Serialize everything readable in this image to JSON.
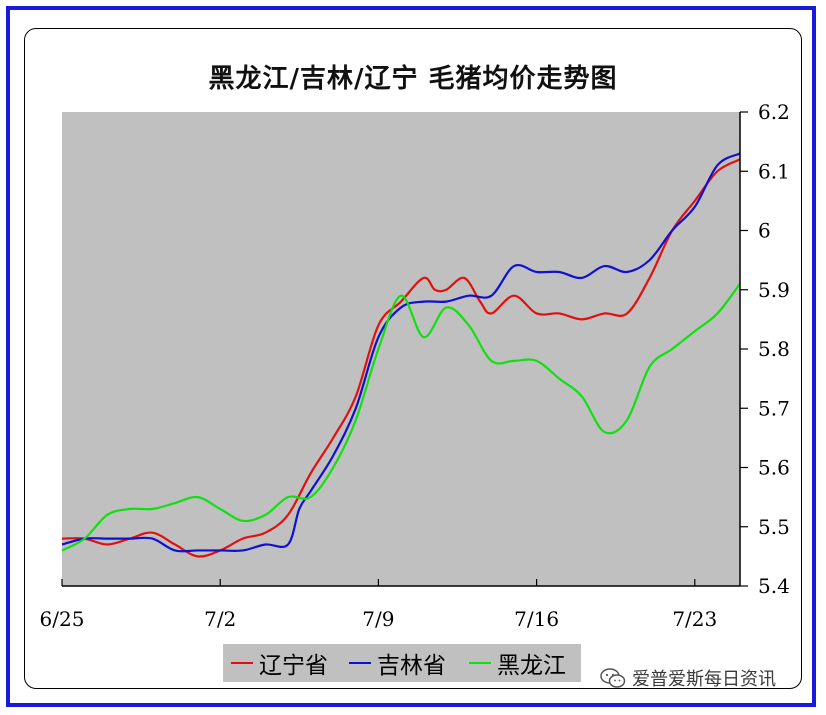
{
  "chart_data": {
    "type": "line",
    "title": "黑龙江/吉林/辽宁  毛猪均价走势图",
    "x_tick_labels": [
      "6/25",
      "7/2",
      "7/9",
      "7/16",
      "7/23"
    ],
    "x_tick_days": [
      0,
      7,
      14,
      21,
      28
    ],
    "x_range_days": [
      0,
      30
    ],
    "y_tick_labels": [
      "5.4",
      "5.5",
      "5.6",
      "5.7",
      "5.8",
      "5.9",
      "6",
      "6.1",
      "6.2"
    ],
    "ylim": [
      5.4,
      6.2
    ],
    "y_axis_side": "right",
    "plot_background": "#c0c0c0",
    "grid": false,
    "legend_position": "bottom",
    "series": [
      {
        "name": "辽宁省",
        "color": "#e01010",
        "points": [
          [
            0,
            5.48
          ],
          [
            1,
            5.48
          ],
          [
            2,
            5.47
          ],
          [
            3,
            5.48
          ],
          [
            4,
            5.49
          ],
          [
            5,
            5.47
          ],
          [
            6,
            5.45
          ],
          [
            7,
            5.46
          ],
          [
            8,
            5.48
          ],
          [
            9,
            5.49
          ],
          [
            10,
            5.52
          ],
          [
            11,
            5.59
          ],
          [
            12,
            5.65
          ],
          [
            13,
            5.72
          ],
          [
            14,
            5.84
          ],
          [
            15,
            5.88
          ],
          [
            16,
            5.92
          ],
          [
            16.5,
            5.9
          ],
          [
            17,
            5.9
          ],
          [
            17.8,
            5.92
          ],
          [
            18.5,
            5.88
          ],
          [
            19,
            5.86
          ],
          [
            20,
            5.89
          ],
          [
            21,
            5.86
          ],
          [
            22,
            5.86
          ],
          [
            23,
            5.85
          ],
          [
            24,
            5.86
          ],
          [
            25,
            5.86
          ],
          [
            26,
            5.92
          ],
          [
            27,
            6.0
          ],
          [
            28,
            6.05
          ],
          [
            29,
            6.1
          ],
          [
            30,
            6.12
          ]
        ]
      },
      {
        "name": "吉林省",
        "color": "#1010d0",
        "points": [
          [
            0,
            5.47
          ],
          [
            1,
            5.48
          ],
          [
            2,
            5.48
          ],
          [
            3,
            5.48
          ],
          [
            4,
            5.48
          ],
          [
            5,
            5.46
          ],
          [
            6,
            5.46
          ],
          [
            7,
            5.46
          ],
          [
            8,
            5.46
          ],
          [
            9,
            5.47
          ],
          [
            10,
            5.47
          ],
          [
            10.5,
            5.53
          ],
          [
            11,
            5.56
          ],
          [
            12,
            5.62
          ],
          [
            13,
            5.7
          ],
          [
            14,
            5.82
          ],
          [
            15,
            5.87
          ],
          [
            16,
            5.88
          ],
          [
            17,
            5.88
          ],
          [
            18,
            5.89
          ],
          [
            19,
            5.89
          ],
          [
            20,
            5.94
          ],
          [
            21,
            5.93
          ],
          [
            22,
            5.93
          ],
          [
            23,
            5.92
          ],
          [
            24,
            5.94
          ],
          [
            25,
            5.93
          ],
          [
            26,
            5.95
          ],
          [
            27,
            6.0
          ],
          [
            28,
            6.04
          ],
          [
            29,
            6.11
          ],
          [
            30,
            6.13
          ]
        ]
      },
      {
        "name": "黑龙江",
        "color": "#10e010",
        "points": [
          [
            0,
            5.46
          ],
          [
            1,
            5.48
          ],
          [
            2,
            5.52
          ],
          [
            3,
            5.53
          ],
          [
            4,
            5.53
          ],
          [
            5,
            5.54
          ],
          [
            6,
            5.55
          ],
          [
            7,
            5.53
          ],
          [
            8,
            5.51
          ],
          [
            9,
            5.52
          ],
          [
            10,
            5.55
          ],
          [
            11,
            5.55
          ],
          [
            12,
            5.6
          ],
          [
            13,
            5.68
          ],
          [
            14,
            5.8
          ],
          [
            15,
            5.89
          ],
          [
            16,
            5.82
          ],
          [
            17,
            5.87
          ],
          [
            18,
            5.84
          ],
          [
            19,
            5.78
          ],
          [
            20,
            5.78
          ],
          [
            21,
            5.78
          ],
          [
            22,
            5.75
          ],
          [
            23,
            5.72
          ],
          [
            24,
            5.66
          ],
          [
            25,
            5.68
          ],
          [
            26,
            5.77
          ],
          [
            27,
            5.8
          ],
          [
            28,
            5.83
          ],
          [
            29,
            5.86
          ],
          [
            30,
            5.91
          ]
        ]
      }
    ]
  },
  "watermark": {
    "icon": "wechat-icon",
    "text": "爱普爱斯每日资讯"
  }
}
